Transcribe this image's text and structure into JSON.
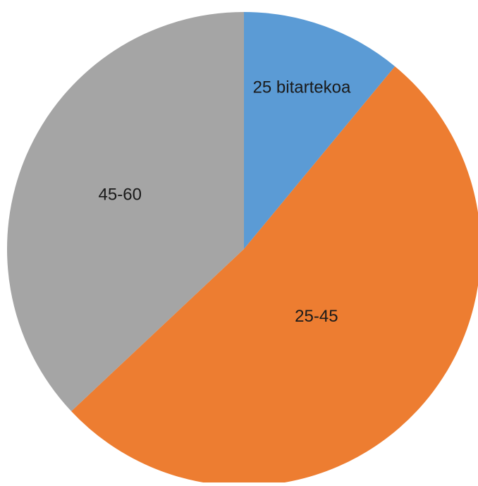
{
  "chart_data": {
    "type": "pie",
    "categories": [
      "25 bitartekoa",
      "25-45",
      "45-60"
    ],
    "values": [
      11,
      52,
      37
    ],
    "colors": [
      "#5b9bd5",
      "#ed7d31",
      "#a5a5a5"
    ],
    "start": "12 o'clock",
    "direction": "clockwise",
    "legend": "none",
    "labels": "inside slices"
  }
}
